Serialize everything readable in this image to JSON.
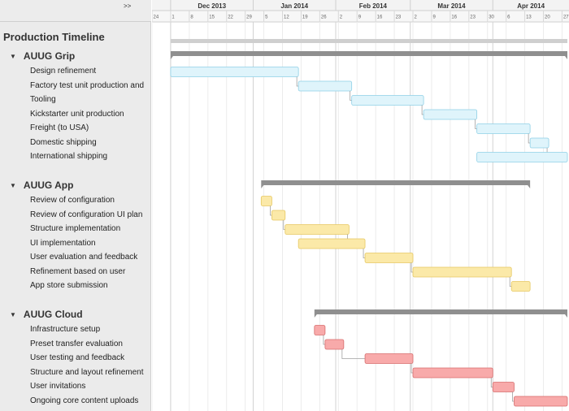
{
  "ui": {
    "collapse_label": ">>",
    "timeline_title": "Production Timeline"
  },
  "chart_data": {
    "type": "gantt",
    "title": "Production Timeline",
    "x_range": [
      "2013-11-24",
      "2014-04-29"
    ],
    "months": [
      {
        "label": "Dec 2013",
        "start": "2013-12-01"
      },
      {
        "label": "Jan 2014",
        "start": "2014-01-01"
      },
      {
        "label": "Feb 2014",
        "start": "2014-02-01"
      },
      {
        "label": "Mar 2014",
        "start": "2014-03-01"
      },
      {
        "label": "Apr 2014",
        "start": "2014-04-01"
      }
    ],
    "week_ticks": [
      {
        "label": "24",
        "date": "2013-11-24"
      },
      {
        "label": "1",
        "date": "2013-12-01"
      },
      {
        "label": "8",
        "date": "2013-12-08"
      },
      {
        "label": "15",
        "date": "2013-12-15"
      },
      {
        "label": "22",
        "date": "2013-12-22"
      },
      {
        "label": "29",
        "date": "2013-12-29"
      },
      {
        "label": "5",
        "date": "2014-01-05"
      },
      {
        "label": "12",
        "date": "2014-01-12"
      },
      {
        "label": "19",
        "date": "2014-01-19"
      },
      {
        "label": "26",
        "date": "2014-01-26"
      },
      {
        "label": "2",
        "date": "2014-02-02"
      },
      {
        "label": "9",
        "date": "2014-02-09"
      },
      {
        "label": "16",
        "date": "2014-02-16"
      },
      {
        "label": "23",
        "date": "2014-02-23"
      },
      {
        "label": "2",
        "date": "2014-03-02"
      },
      {
        "label": "9",
        "date": "2014-03-09"
      },
      {
        "label": "16",
        "date": "2014-03-16"
      },
      {
        "label": "23",
        "date": "2014-03-23"
      },
      {
        "label": "30",
        "date": "2014-03-30"
      },
      {
        "label": "6",
        "date": "2014-04-06"
      },
      {
        "label": "13",
        "date": "2014-04-13"
      },
      {
        "label": "20",
        "date": "2014-04-20"
      },
      {
        "label": "27",
        "date": "2014-04-27"
      }
    ],
    "project_range": [
      "2013-12-01",
      "2014-04-29"
    ],
    "groups": [
      {
        "name": "AUUG Grip",
        "color": "#dff4fb",
        "border": "#8fd0e6",
        "start": "2013-12-01",
        "end": "2014-04-29",
        "tasks": [
          {
            "name": "Design refinement",
            "start": "2013-12-01",
            "end": "2014-01-18"
          },
          {
            "name": "Factory test unit production and",
            "start": "2014-01-18",
            "end": "2014-02-07"
          },
          {
            "name": "Tooling",
            "start": "2014-02-07",
            "end": "2014-03-06"
          },
          {
            "name": "Kickstarter unit production",
            "start": "2014-03-06",
            "end": "2014-03-26"
          },
          {
            "name": "Freight (to USA)",
            "start": "2014-03-26",
            "end": "2014-04-15"
          },
          {
            "name": "Domestic shipping",
            "start": "2014-04-15",
            "end": "2014-04-22"
          },
          {
            "name": "International shipping",
            "start": "2014-03-26",
            "end": "2014-04-29"
          }
        ]
      },
      {
        "name": "AUUG App",
        "color": "#fbe9a8",
        "border": "#e6c862",
        "start": "2014-01-04",
        "end": "2014-04-15",
        "tasks": [
          {
            "name": "Review of configuration",
            "start": "2014-01-04",
            "end": "2014-01-08"
          },
          {
            "name": "Review of configuration UI plan",
            "start": "2014-01-08",
            "end": "2014-01-13"
          },
          {
            "name": "Structure implementation",
            "start": "2014-01-13",
            "end": "2014-02-06"
          },
          {
            "name": "UI implementation",
            "start": "2014-01-18",
            "end": "2014-02-12"
          },
          {
            "name": "User evaluation and feedback",
            "start": "2014-02-12",
            "end": "2014-03-02"
          },
          {
            "name": "Refinement based on user",
            "start": "2014-03-02",
            "end": "2014-04-08"
          },
          {
            "name": "App store submission",
            "start": "2014-04-08",
            "end": "2014-04-15"
          }
        ]
      },
      {
        "name": "AUUG Cloud",
        "color": "#f8aaaa",
        "border": "#d66e6e",
        "start": "2014-01-24",
        "end": "2014-04-29",
        "tasks": [
          {
            "name": "Infrastructure setup",
            "start": "2014-01-24",
            "end": "2014-01-28"
          },
          {
            "name": "Preset transfer evaluation",
            "start": "2014-01-28",
            "end": "2014-02-04"
          },
          {
            "name": "User testing and feedback",
            "start": "2014-02-12",
            "end": "2014-03-02"
          },
          {
            "name": "Structure and layout refinement",
            "start": "2014-03-02",
            "end": "2014-04-01"
          },
          {
            "name": "User invitations",
            "start": "2014-04-01",
            "end": "2014-04-09"
          },
          {
            "name": "Ongoing core content uploads",
            "start": "2014-04-09",
            "end": "2014-04-29"
          }
        ]
      }
    ]
  }
}
